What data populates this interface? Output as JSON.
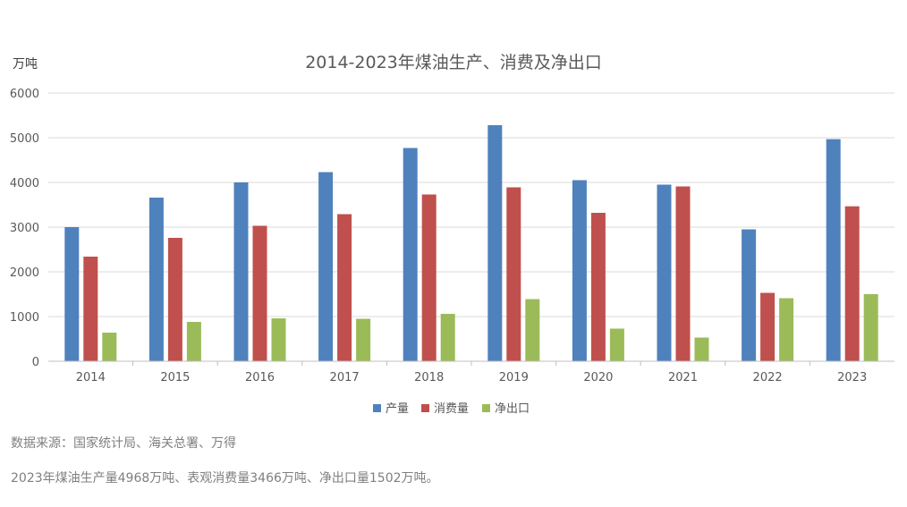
{
  "chart_data": {
    "type": "bar",
    "title": "2014-2023年煤油生产、消费及净出口",
    "ylabel": "万吨",
    "xlabel": "",
    "ylim": [
      0,
      6000
    ],
    "yticks": [
      0,
      1000,
      2000,
      3000,
      4000,
      5000,
      6000
    ],
    "grid": true,
    "legend_position": "bottom",
    "categories": [
      "2014",
      "2015",
      "2016",
      "2017",
      "2018",
      "2019",
      "2020",
      "2021",
      "2022",
      "2023"
    ],
    "series": [
      {
        "name": "产量",
        "color": "#4f81bd",
        "values": [
          3000,
          3660,
          4000,
          4230,
          4770,
          5280,
          4050,
          3950,
          2950,
          4968
        ]
      },
      {
        "name": "消费量",
        "color": "#c0504d",
        "values": [
          2340,
          2760,
          3030,
          3290,
          3730,
          3890,
          3320,
          3910,
          1530,
          3466
        ]
      },
      {
        "name": "净出口",
        "color": "#9bbb59",
        "values": [
          640,
          880,
          960,
          950,
          1060,
          1390,
          730,
          530,
          1410,
          1502
        ]
      }
    ]
  },
  "footer": {
    "source": "数据来源：国家统计局、海关总署、万得",
    "note": "2023年煤油生产量4968万吨、表观消费量3466万吨、净出口量1502万吨。"
  }
}
